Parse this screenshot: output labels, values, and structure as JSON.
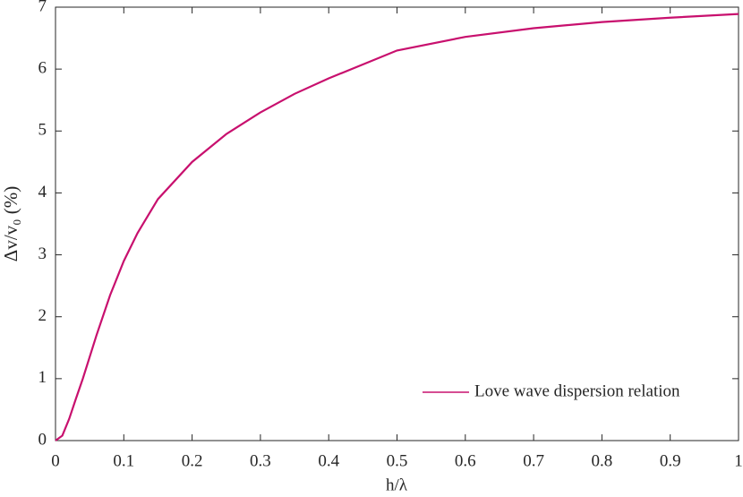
{
  "chart_data": {
    "type": "line",
    "xlabel": "h/λ",
    "ylabel": "Δv/v₀ (%)",
    "x": [
      0,
      0.01,
      0.02,
      0.03,
      0.04,
      0.05,
      0.06,
      0.08,
      0.1,
      0.12,
      0.15,
      0.2,
      0.25,
      0.3,
      0.35,
      0.4,
      0.5,
      0.6,
      0.7,
      0.8,
      0.9,
      1.0
    ],
    "series": [
      {
        "name": "Love wave dispersion relation",
        "color": "#c8106e",
        "values": [
          0,
          0.08,
          0.35,
          0.68,
          1.0,
          1.35,
          1.7,
          2.35,
          2.9,
          3.35,
          3.9,
          4.5,
          4.95,
          5.3,
          5.6,
          5.85,
          6.3,
          6.52,
          6.66,
          6.76,
          6.83,
          6.89
        ]
      }
    ],
    "xlim": [
      0,
      1
    ],
    "ylim": [
      0,
      7
    ],
    "xticks": [
      0,
      0.1,
      0.2,
      0.3,
      0.4,
      0.5,
      0.6,
      0.7,
      0.8,
      0.9,
      1
    ],
    "yticks": [
      0,
      1,
      2,
      3,
      4,
      5,
      6,
      7
    ],
    "grid": false,
    "legend": "lower right"
  }
}
